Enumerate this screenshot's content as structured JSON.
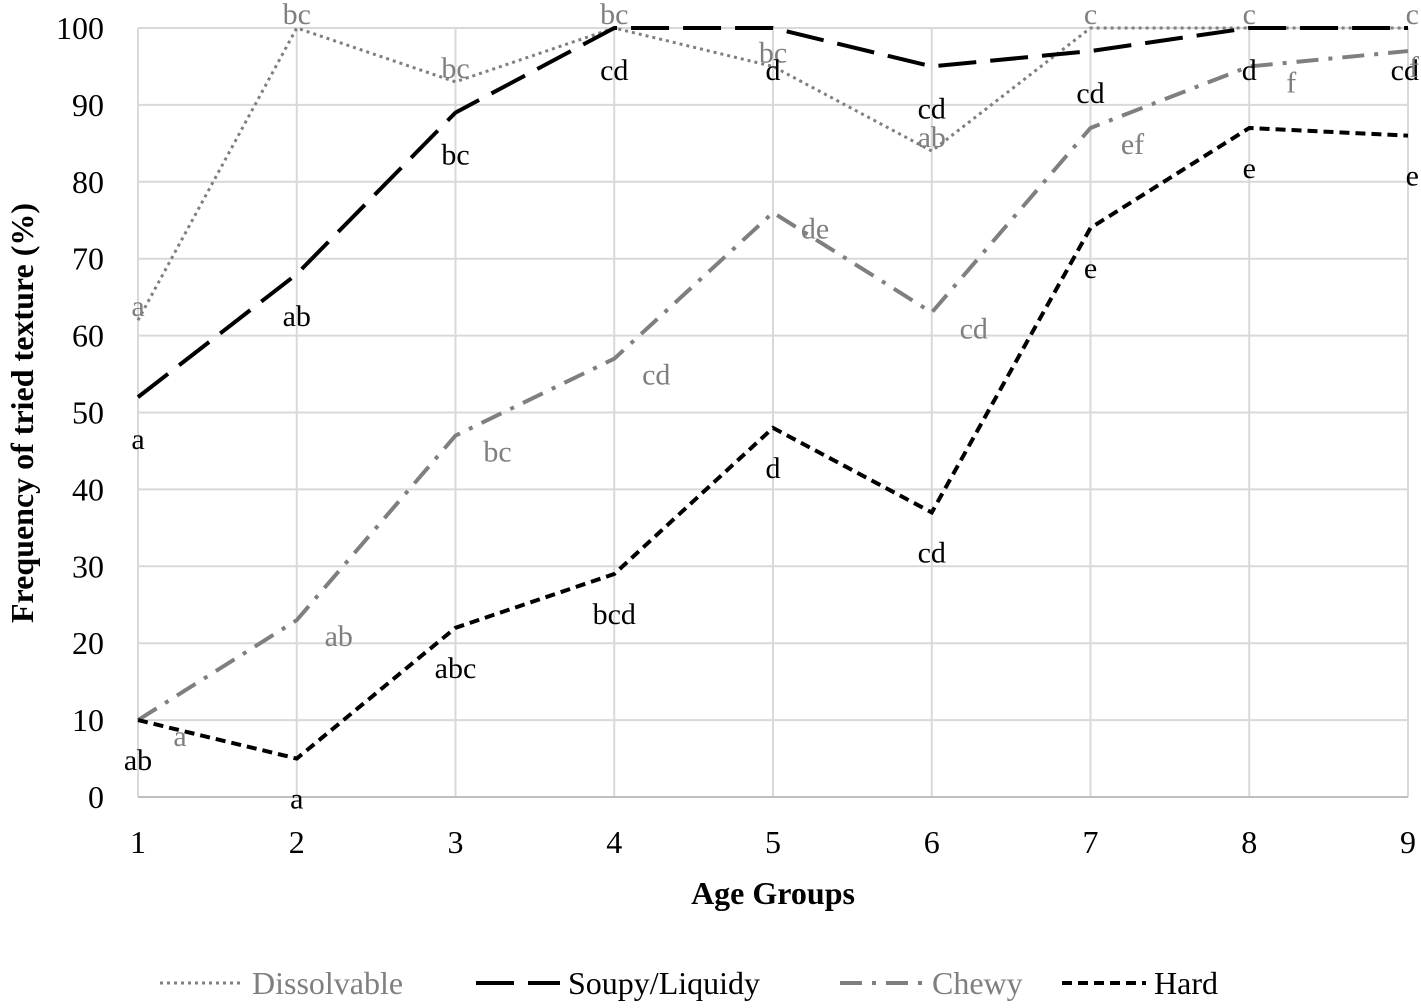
{
  "chart_data": {
    "type": "line",
    "title": "",
    "xlabel": "Age Groups",
    "ylabel": "Frequency of tried texture (%)",
    "x": [
      1,
      2,
      3,
      4,
      5,
      6,
      7,
      8,
      9
    ],
    "xlim": [
      1,
      9
    ],
    "ylim": [
      0,
      100
    ],
    "yticks": [
      0,
      10,
      20,
      30,
      40,
      50,
      60,
      70,
      80,
      90,
      100
    ],
    "grid": true,
    "legend_position": "bottom",
    "series": [
      {
        "name": "Dissolvable",
        "color": "#7f7f7f",
        "dash": "dotted",
        "values": [
          62,
          100,
          93,
          100,
          95,
          84,
          100,
          100,
          100
        ],
        "labels": [
          "a",
          "bc",
          "bc",
          "bc",
          "bc",
          "ab",
          "c",
          "c",
          "c"
        ]
      },
      {
        "name": "Soupy/Liquidy",
        "color": "#000000",
        "dash": "long-dash",
        "values": [
          52,
          68,
          89,
          100,
          100,
          95,
          97,
          100,
          100
        ],
        "labels": [
          "a",
          "ab",
          "bc",
          "cd",
          "d",
          "cd",
          "cd",
          "d",
          "cd"
        ]
      },
      {
        "name": "Chewy",
        "color": "#7f7f7f",
        "dash": "dash-dot",
        "values": [
          10,
          23,
          47,
          57,
          76,
          63,
          87,
          95,
          97
        ],
        "labels": [
          "a",
          "ab",
          "bc",
          "cd",
          "de",
          "cd",
          "ef",
          "f",
          "f"
        ]
      },
      {
        "name": "Hard",
        "color": "#000000",
        "dash": "short-dash",
        "values": [
          10,
          5,
          22,
          29,
          48,
          37,
          74,
          87,
          86
        ],
        "labels": [
          "ab",
          "a",
          "abc",
          "bcd",
          "d",
          "cd",
          "e",
          "e",
          "e"
        ]
      }
    ]
  }
}
